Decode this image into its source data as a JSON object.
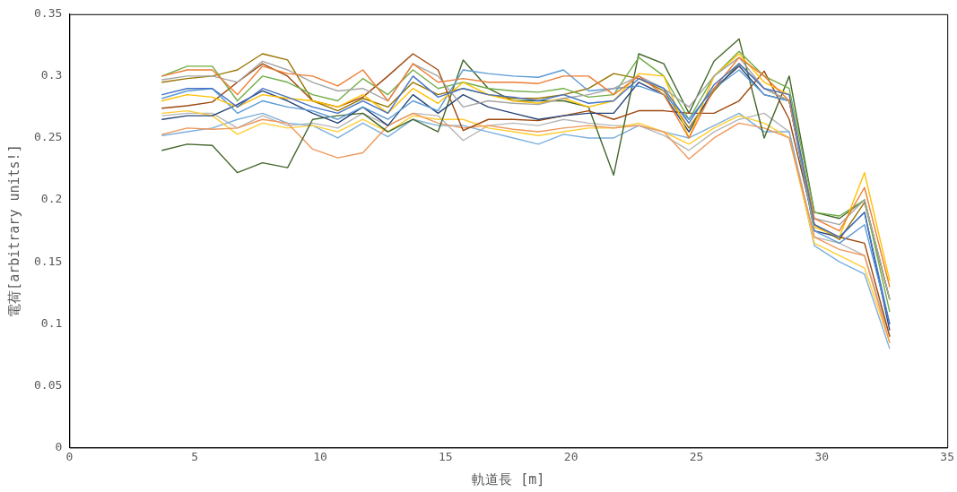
{
  "chart_data": {
    "type": "line",
    "xlabel": "軌道長 [m]",
    "ylabel": "電荷[arbitrary units!]",
    "x": [
      3.7,
      4.7,
      5.7,
      6.7,
      7.7,
      8.7,
      9.7,
      10.7,
      11.7,
      12.7,
      13.7,
      14.7,
      15.7,
      16.7,
      17.7,
      18.7,
      19.7,
      20.7,
      21.7,
      22.7,
      23.7,
      24.7,
      25.7,
      26.7,
      27.7,
      28.7,
      29.7,
      30.7,
      31.7,
      32.7
    ],
    "xlim": [
      0,
      35
    ],
    "xticks": [
      0,
      5,
      10,
      15,
      20,
      25,
      30,
      35
    ],
    "ylim": [
      0,
      0.35
    ],
    "yticks": [
      0,
      0.05,
      0.1,
      0.15,
      0.2,
      0.25,
      0.3,
      0.35
    ],
    "grid": false,
    "legend": false,
    "marker": "none",
    "line_style": "solid",
    "series": [
      {
        "color": "#4472c4",
        "values": [
          0.285,
          0.29,
          0.29,
          0.275,
          0.29,
          0.283,
          0.275,
          0.27,
          0.28,
          0.27,
          0.3,
          0.283,
          0.29,
          0.285,
          0.283,
          0.28,
          0.285,
          0.278,
          0.28,
          0.298,
          0.29,
          0.262,
          0.293,
          0.31,
          0.29,
          0.285,
          0.18,
          0.17,
          0.19,
          0.1
        ]
      },
      {
        "color": "#ed7d31",
        "values": [
          0.3,
          0.305,
          0.305,
          0.285,
          0.308,
          0.302,
          0.3,
          0.292,
          0.305,
          0.28,
          0.31,
          0.295,
          0.298,
          0.295,
          0.295,
          0.294,
          0.3,
          0.3,
          0.285,
          0.3,
          0.285,
          0.25,
          0.29,
          0.315,
          0.3,
          0.28,
          0.185,
          0.175,
          0.21,
          0.13
        ]
      },
      {
        "color": "#a5a5a5",
        "values": [
          0.297,
          0.3,
          0.3,
          0.295,
          0.312,
          0.305,
          0.295,
          0.288,
          0.29,
          0.28,
          0.31,
          0.3,
          0.275,
          0.28,
          0.278,
          0.277,
          0.282,
          0.285,
          0.29,
          0.3,
          0.29,
          0.275,
          0.3,
          0.315,
          0.29,
          0.28,
          0.185,
          0.18,
          0.2,
          0.12
        ]
      },
      {
        "color": "#ffc000",
        "values": [
          0.28,
          0.285,
          0.283,
          0.275,
          0.285,
          0.282,
          0.28,
          0.275,
          0.285,
          0.27,
          0.29,
          0.278,
          0.295,
          0.285,
          0.28,
          0.278,
          0.282,
          0.275,
          0.28,
          0.302,
          0.3,
          0.25,
          0.3,
          0.318,
          0.295,
          0.285,
          0.178,
          0.17,
          0.222,
          0.135
        ]
      },
      {
        "color": "#5b9bd5",
        "values": [
          0.282,
          0.288,
          0.29,
          0.27,
          0.28,
          0.275,
          0.272,
          0.265,
          0.275,
          0.265,
          0.28,
          0.272,
          0.305,
          0.302,
          0.3,
          0.299,
          0.305,
          0.288,
          0.29,
          0.292,
          0.285,
          0.265,
          0.29,
          0.305,
          0.285,
          0.28,
          0.175,
          0.165,
          0.18,
          0.1
        ]
      },
      {
        "color": "#70ad47",
        "values": [
          0.3,
          0.308,
          0.308,
          0.28,
          0.3,
          0.295,
          0.285,
          0.28,
          0.298,
          0.285,
          0.305,
          0.29,
          0.295,
          0.29,
          0.288,
          0.287,
          0.29,
          0.283,
          0.285,
          0.315,
          0.3,
          0.265,
          0.3,
          0.32,
          0.3,
          0.29,
          0.19,
          0.187,
          0.2,
          0.11
        ]
      },
      {
        "color": "#264478",
        "values": [
          0.265,
          0.268,
          0.268,
          0.277,
          0.288,
          0.28,
          0.27,
          0.262,
          0.275,
          0.26,
          0.285,
          0.27,
          0.285,
          0.275,
          0.27,
          0.265,
          0.268,
          0.27,
          0.27,
          0.295,
          0.285,
          0.255,
          0.29,
          0.308,
          0.285,
          0.28,
          0.175,
          0.17,
          0.19,
          0.095
        ]
      },
      {
        "color": "#9e480e",
        "values": [
          0.274,
          0.276,
          0.279,
          0.295,
          0.31,
          0.3,
          0.28,
          0.275,
          0.283,
          0.3,
          0.318,
          0.305,
          0.256,
          0.265,
          0.265,
          0.264,
          0.268,
          0.272,
          0.265,
          0.272,
          0.272,
          0.27,
          0.27,
          0.28,
          0.304,
          0.265,
          0.18,
          0.17,
          0.165,
          0.09
        ]
      },
      {
        "color": "#997300",
        "values": [
          0.295,
          0.298,
          0.3,
          0.305,
          0.318,
          0.313,
          0.28,
          0.272,
          0.282,
          0.275,
          0.295,
          0.285,
          0.29,
          0.285,
          0.282,
          0.282,
          0.285,
          0.29,
          0.302,
          0.298,
          0.288,
          0.258,
          0.288,
          0.31,
          0.29,
          0.28,
          0.18,
          0.168,
          0.198,
          0.12
        ]
      },
      {
        "color": "#43682b",
        "values": [
          0.24,
          0.245,
          0.244,
          0.222,
          0.23,
          0.226,
          0.265,
          0.268,
          0.27,
          0.255,
          0.265,
          0.255,
          0.313,
          0.29,
          0.28,
          0.28,
          0.28,
          0.275,
          0.22,
          0.318,
          0.31,
          0.27,
          0.312,
          0.33,
          0.25,
          0.3,
          0.19,
          0.185,
          0.2,
          0.12
        ]
      },
      {
        "color": "#f1975a",
        "values": [
          0.253,
          0.258,
          0.257,
          0.258,
          0.265,
          0.262,
          0.241,
          0.234,
          0.238,
          0.26,
          0.27,
          0.262,
          0.258,
          0.26,
          0.257,
          0.255,
          0.258,
          0.26,
          0.258,
          0.26,
          0.255,
          0.233,
          0.25,
          0.262,
          0.258,
          0.25,
          0.17,
          0.16,
          0.155,
          0.085
        ]
      },
      {
        "color": "#ffcd33",
        "values": [
          0.27,
          0.272,
          0.268,
          0.253,
          0.262,
          0.258,
          0.26,
          0.255,
          0.265,
          0.255,
          0.268,
          0.265,
          0.265,
          0.258,
          0.255,
          0.252,
          0.255,
          0.258,
          0.258,
          0.262,
          0.255,
          0.245,
          0.258,
          0.268,
          0.262,
          0.25,
          0.165,
          0.155,
          0.145,
          0.085
        ]
      },
      {
        "color": "#7cafdd",
        "values": [
          0.252,
          0.255,
          0.258,
          0.265,
          0.27,
          0.262,
          0.26,
          0.25,
          0.262,
          0.251,
          0.265,
          0.26,
          0.26,
          0.255,
          0.25,
          0.245,
          0.253,
          0.25,
          0.25,
          0.26,
          0.255,
          0.25,
          0.26,
          0.27,
          0.255,
          0.255,
          0.163,
          0.15,
          0.14,
          0.08
        ]
      },
      {
        "color": "#b7b7b7",
        "values": [
          0.268,
          0.27,
          0.27,
          0.258,
          0.268,
          0.26,
          0.262,
          0.258,
          0.27,
          0.26,
          0.27,
          0.268,
          0.248,
          0.26,
          0.262,
          0.26,
          0.265,
          0.262,
          0.26,
          0.26,
          0.252,
          0.24,
          0.255,
          0.265,
          0.27,
          0.255,
          0.17,
          0.165,
          0.155,
          0.09
        ]
      }
    ]
  }
}
